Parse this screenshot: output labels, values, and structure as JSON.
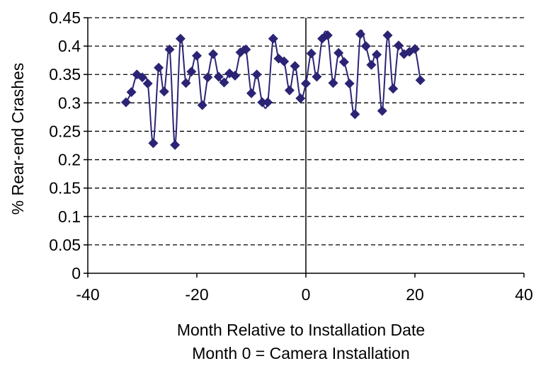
{
  "chart_data": {
    "type": "line",
    "title": "",
    "xlabel": "Month Relative to Installation Date",
    "xlabel_line2": "Month 0 = Camera Installation",
    "ylabel": "% Rear-end Crashes",
    "xlim": [
      -40,
      40
    ],
    "ylim": [
      0,
      0.45
    ],
    "x_ticks": [
      -40,
      -20,
      0,
      20,
      40
    ],
    "x_tick_labels": [
      "-40",
      "-20",
      "0",
      "20",
      "40"
    ],
    "y_ticks": [
      0,
      0.05,
      0.1,
      0.15,
      0.2,
      0.25,
      0.3,
      0.35,
      0.4,
      0.45
    ],
    "y_tick_labels": [
      "0",
      "0.05",
      "0.1",
      "0.15",
      "0.2",
      "0.25",
      "0.3",
      "0.35",
      "0.4",
      "0.45"
    ],
    "grid": "horizontal dashed",
    "vertical_reference_line_x": 0,
    "marker": "diamond",
    "series_color": "#2b2475",
    "series": [
      {
        "x": [
          -33,
          -32,
          -31,
          -30,
          -29,
          -28,
          -27,
          -26,
          -25,
          -24,
          -23,
          -22,
          -21,
          -20,
          -19,
          -18,
          -17,
          -16,
          -15,
          -14,
          -13,
          -12,
          -11,
          -10,
          -9,
          -8,
          -7,
          -6,
          -5,
          -4,
          -3,
          -2,
          -1,
          0,
          1,
          2,
          3,
          4,
          5,
          6,
          7,
          8,
          9,
          10,
          11,
          12,
          13,
          14,
          15,
          16,
          17,
          18,
          19,
          20,
          21
        ],
        "values": [
          0.301,
          0.319,
          0.35,
          0.345,
          0.334,
          0.229,
          0.362,
          0.32,
          0.394,
          0.226,
          0.413,
          0.335,
          0.355,
          0.383,
          0.296,
          0.345,
          0.386,
          0.346,
          0.336,
          0.352,
          0.348,
          0.389,
          0.394,
          0.317,
          0.35,
          0.301,
          0.301,
          0.413,
          0.378,
          0.373,
          0.322,
          0.365,
          0.308,
          0.334,
          0.387,
          0.346,
          0.413,
          0.419,
          0.335,
          0.388,
          0.372,
          0.334,
          0.28,
          0.421,
          0.4,
          0.367,
          0.385,
          0.286,
          0.419,
          0.325,
          0.401,
          0.386,
          0.39,
          0.395,
          0.34
        ]
      }
    ]
  }
}
